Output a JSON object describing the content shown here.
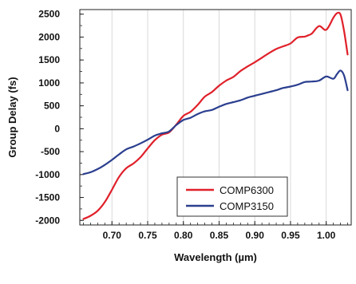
{
  "chart_data": {
    "type": "line",
    "title": "",
    "xlabel": "Wavelength (µm)",
    "ylabel": "Group Delay (fs)",
    "xlim": [
      0.655,
      1.035
    ],
    "ylim": [
      -2100,
      2600
    ],
    "x_ticks": [
      0.7,
      0.75,
      0.8,
      0.85,
      0.9,
      0.95,
      1.0
    ],
    "x_tick_labels": [
      "0.70",
      "0.75",
      "0.80",
      "0.85",
      "0.90",
      "0.95",
      "1.00"
    ],
    "y_ticks": [
      -2000,
      -1500,
      -1000,
      -500,
      0,
      500,
      1000,
      1500,
      2000,
      2500
    ],
    "y_tick_labels": [
      "-2000",
      "-1500",
      "-1000",
      "-500",
      "0",
      "500",
      "1000",
      "1500",
      "2000",
      "2500"
    ],
    "grid": "vertical",
    "legend_position": "lower-right",
    "series": [
      {
        "name": "COMP6300",
        "color": "#e0202a",
        "x": [
          0.66,
          0.67,
          0.68,
          0.69,
          0.7,
          0.71,
          0.72,
          0.73,
          0.74,
          0.75,
          0.76,
          0.77,
          0.78,
          0.79,
          0.8,
          0.81,
          0.82,
          0.83,
          0.84,
          0.85,
          0.86,
          0.87,
          0.88,
          0.89,
          0.9,
          0.91,
          0.92,
          0.93,
          0.94,
          0.95,
          0.96,
          0.97,
          0.975,
          0.98,
          0.99,
          1.0,
          1.01,
          1.015,
          1.02,
          1.025,
          1.03
        ],
        "y": [
          -1970,
          -1900,
          -1790,
          -1600,
          -1330,
          -1050,
          -860,
          -760,
          -620,
          -430,
          -250,
          -130,
          -80,
          90,
          280,
          370,
          520,
          700,
          800,
          940,
          1050,
          1130,
          1260,
          1360,
          1450,
          1550,
          1650,
          1740,
          1800,
          1860,
          1990,
          2010,
          2040,
          2080,
          2240,
          2160,
          2420,
          2520,
          2490,
          2130,
          1620
        ]
      },
      {
        "name": "COMP3150",
        "color": "#2b3f8f",
        "x": [
          0.66,
          0.67,
          0.68,
          0.69,
          0.7,
          0.71,
          0.72,
          0.73,
          0.74,
          0.75,
          0.76,
          0.77,
          0.78,
          0.79,
          0.8,
          0.81,
          0.82,
          0.83,
          0.84,
          0.85,
          0.86,
          0.87,
          0.88,
          0.89,
          0.9,
          0.91,
          0.92,
          0.93,
          0.94,
          0.95,
          0.96,
          0.97,
          0.98,
          0.99,
          1.0,
          1.01,
          1.015,
          1.02,
          1.025,
          1.03
        ],
        "y": [
          -990,
          -950,
          -880,
          -790,
          -680,
          -560,
          -450,
          -390,
          -320,
          -240,
          -150,
          -100,
          -60,
          80,
          190,
          240,
          320,
          380,
          410,
          480,
          540,
          580,
          620,
          680,
          720,
          760,
          800,
          840,
          890,
          920,
          960,
          1020,
          1030,
          1050,
          1140,
          1090,
          1190,
          1270,
          1160,
          840
        ]
      }
    ]
  }
}
